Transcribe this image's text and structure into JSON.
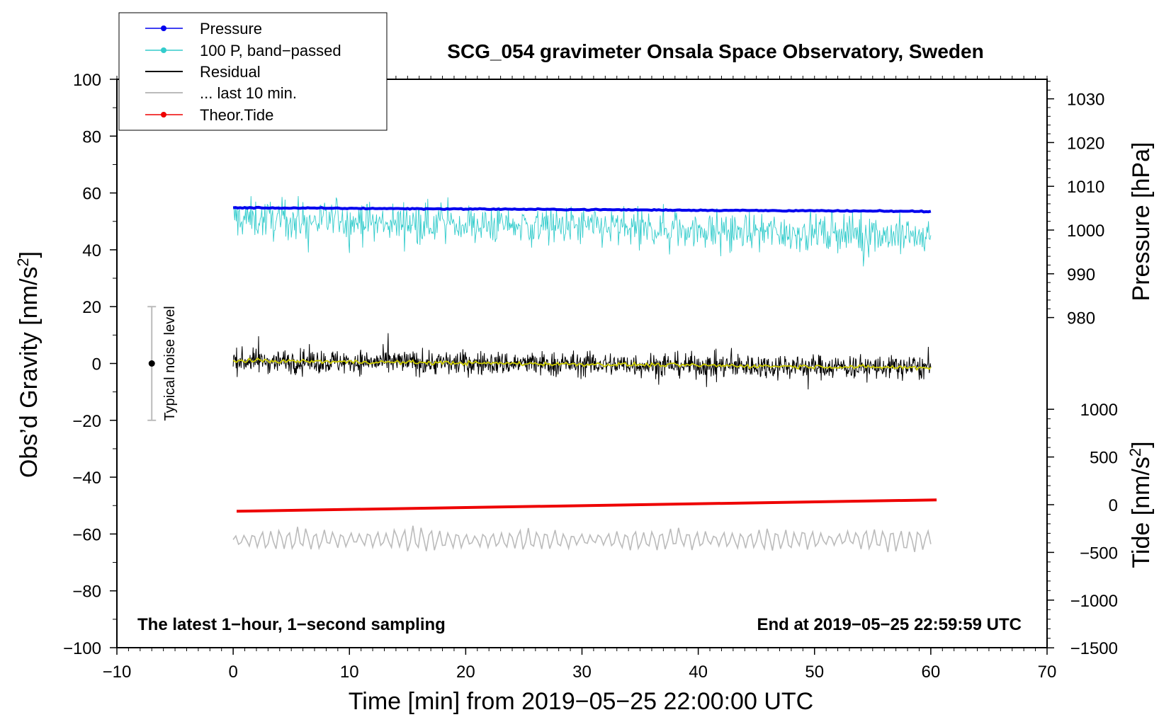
{
  "chart_data": {
    "type": "line",
    "title": "SCG_054 gravimeter Onsala Space Observatory, Sweden",
    "xlabel": "Time [min] from 2019−05−25 22:00:00 UTC",
    "ylabel_left": "Obs’d Gravity [nm/s",
    "ylabel_left_sup": "2",
    "ylabel_left_end": "]",
    "ylabel_right_pressure": "Pressure [hPa]",
    "ylabel_right_tide": "Tide [nm/s",
    "ylabel_right_tide_sup": "2",
    "ylabel_right_tide_end": "]",
    "xlim": [
      -10,
      70
    ],
    "ylim": [
      -100,
      100
    ],
    "x_ticks": [
      "−10",
      "0",
      "10",
      "20",
      "30",
      "40",
      "50",
      "60",
      "70"
    ],
    "y_ticks": [
      "−100",
      "−80",
      "−60",
      "−40",
      "−20",
      "0",
      "20",
      "40",
      "60",
      "80",
      "100"
    ],
    "pressure_axis": {
      "ticks": [
        "980",
        "990",
        "1000",
        "1010",
        "1020",
        "1030"
      ],
      "values": [
        980,
        990,
        1000,
        1010,
        1020,
        1030
      ]
    },
    "tide_axis": {
      "ticks": [
        "−1500",
        "−1000",
        "−500",
        "0",
        "500",
        "1000"
      ],
      "values": [
        -1500,
        -1000,
        -500,
        0,
        500,
        1000
      ]
    },
    "note_left": "The latest 1−hour, 1−second sampling",
    "note_right": "End at 2019−05−25 22:59:59 UTC",
    "noise_bar": {
      "label": "Typical noise level",
      "x": -7,
      "center": 0,
      "low": -20,
      "high": 20
    },
    "legend": {
      "placement": "top-left",
      "entries": [
        "Pressure",
        "100 P, band−passed",
        "Residual",
        "... last 10 min.",
        "Theor.Tide"
      ]
    },
    "series": [
      {
        "name": "Pressure",
        "color": "#0000ee",
        "x_range": [
          0,
          60
        ],
        "start_value_hpa": 1004.5,
        "end_value_hpa": 1003.0,
        "gravity_equiv_start": 54.8,
        "gravity_equiv_end": 53.5
      },
      {
        "name": "100 P, band−passed",
        "color": "#33cccc",
        "x_range": [
          0,
          60
        ],
        "mean_start": 51,
        "mean_end": 45,
        "spread": 11
      },
      {
        "name": "Residual",
        "color": "#000000",
        "x_range": [
          0,
          60
        ],
        "mean_start": 1,
        "mean_end": -1.5,
        "spread": 4
      },
      {
        "name": "Residual smoothed",
        "color": "#cccc00",
        "x_range": [
          0,
          60
        ],
        "mean_start": 1,
        "mean_end": -1.5
      },
      {
        "name": "... last 10 min.",
        "color": "#bbbbbb",
        "x_range": [
          0,
          60
        ],
        "mean": -62,
        "spread": 3
      },
      {
        "name": "Theor.Tide",
        "color": "#ee0000",
        "x_range": [
          0.3,
          60.5
        ],
        "start_value": -52,
        "end_value": -48
      }
    ],
    "colors": {
      "pressure": "#0000ee",
      "bandpassed": "#33cccc",
      "residual": "#000000",
      "smoothed": "#cccc00",
      "last10": "#bbbbbb",
      "tide": "#ee0000"
    }
  }
}
